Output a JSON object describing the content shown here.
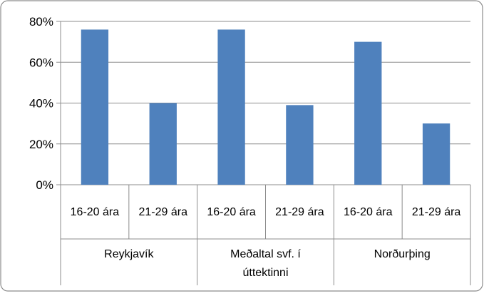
{
  "chart_data": {
    "type": "bar",
    "title": "",
    "xlabel": "",
    "ylabel": "",
    "ylim": [
      0,
      80
    ],
    "y_ticks": [
      "0%",
      "20%",
      "40%",
      "60%",
      "80%"
    ],
    "y_tick_values": [
      0,
      20,
      40,
      60,
      80
    ],
    "grid": true,
    "legend": "none",
    "bar_color": "#4f81bd",
    "groups": [
      {
        "label_lines": [
          "Reykjavík"
        ],
        "categories": [
          "16-20 ára",
          "21-29 ára"
        ],
        "values": [
          76,
          40
        ]
      },
      {
        "label_lines": [
          "Meðaltal svf. í",
          "úttektinni"
        ],
        "categories": [
          "16-20 ára",
          "21-29 ára"
        ],
        "values": [
          76,
          39
        ]
      },
      {
        "label_lines": [
          "Norðurþing"
        ],
        "categories": [
          "16-20 ára",
          "21-29 ára"
        ],
        "values": [
          70,
          30
        ]
      }
    ]
  }
}
